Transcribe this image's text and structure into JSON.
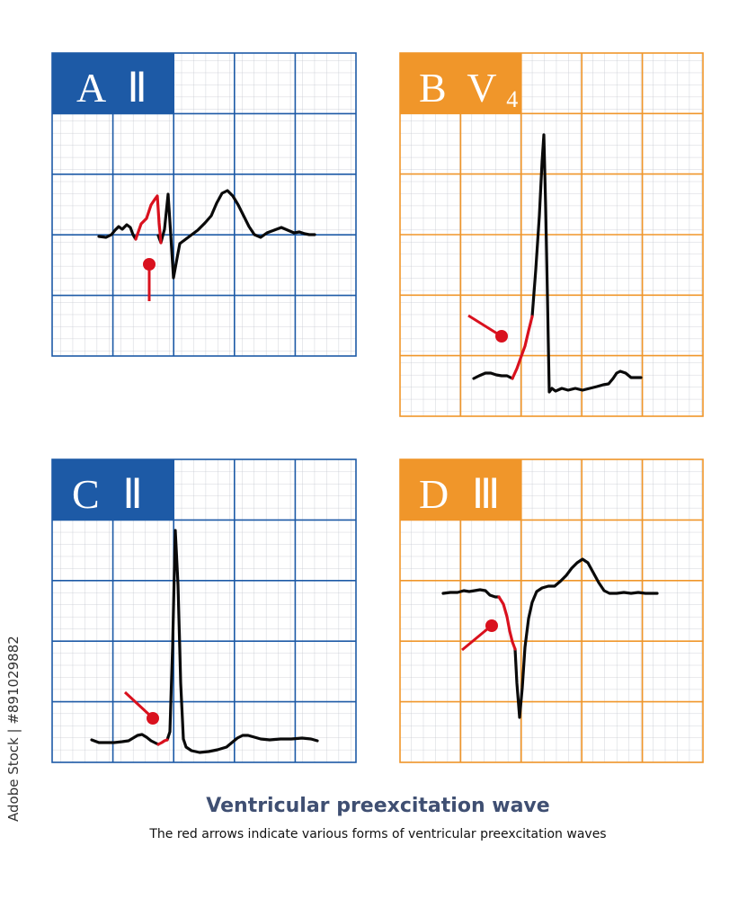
{
  "title": "Ventricular preexcitation wave",
  "subtitle": "The red arrows indicate various forms of ventricular preexcitation waves",
  "side_id": "Adobe Stock | #891029882",
  "colors": {
    "blue": "#1d5aa6",
    "orange": "#f0962a",
    "minor_grid": "#c5c8d0",
    "trace": "#0a0a0a",
    "highlight": "#d9111e"
  },
  "panels": [
    {
      "id": "A",
      "letter": "A",
      "lead": "Ⅱ",
      "lead_sub": "",
      "color": "blue"
    },
    {
      "id": "B",
      "letter": "B",
      "lead": "V",
      "lead_sub": "4",
      "color": "orange"
    },
    {
      "id": "C",
      "letter": "C",
      "lead": "Ⅱ",
      "lead_sub": "",
      "color": "blue"
    },
    {
      "id": "D",
      "letter": "D",
      "lead": "Ⅲ",
      "lead_sub": "",
      "color": "orange"
    }
  ]
}
